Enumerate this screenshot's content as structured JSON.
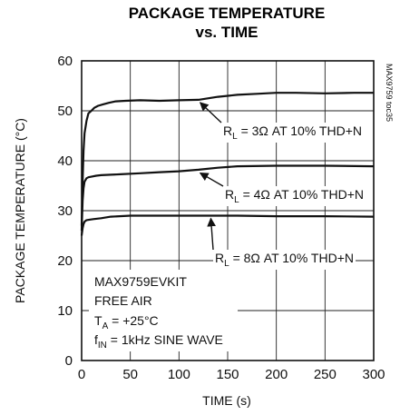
{
  "chart_data": {
    "type": "line",
    "title_line1": "PACKAGE TEMPERATURE",
    "title_line2": "vs. TIME",
    "xlabel": "TIME (s)",
    "ylabel": "PACKAGE TEMPERATURE (°C)",
    "xlim": [
      0,
      300
    ],
    "ylim": [
      0,
      60
    ],
    "xticks": [
      "0",
      "50",
      "100",
      "150",
      "200",
      "250",
      "300"
    ],
    "yticks": [
      "0",
      "10",
      "20",
      "30",
      "40",
      "50",
      "60"
    ],
    "grid": true,
    "side_tag": "MAX9759 toc35",
    "series": [
      {
        "name": "RL = 3Ω AT 10% THD+N",
        "x": [
          0,
          1,
          2,
          3,
          5,
          7,
          10,
          13,
          17,
          22,
          28,
          35,
          45,
          60,
          80,
          100,
          120,
          140,
          160,
          180,
          200,
          220,
          250,
          280,
          300
        ],
        "y": [
          27,
          36,
          42,
          45.5,
          48,
          49.5,
          50,
          50.6,
          51,
          51.3,
          51.6,
          51.9,
          52,
          52.1,
          52,
          52.1,
          52.2,
          52.8,
          53.2,
          53.4,
          53.6,
          53.6,
          53.5,
          53.6,
          53.6
        ]
      },
      {
        "name": "RL = 4Ω AT 10% THD+N",
        "x": [
          0,
          1,
          2,
          3,
          5,
          7,
          10,
          15,
          20,
          30,
          40,
          60,
          80,
          100,
          120,
          140,
          160,
          200,
          250,
          300
        ],
        "y": [
          26,
          32,
          34.5,
          35.8,
          36.5,
          36.7,
          36.8,
          37,
          37.1,
          37.2,
          37.3,
          37.5,
          37.7,
          37.9,
          38.2,
          38.6,
          38.9,
          39,
          39,
          38.9
        ]
      },
      {
        "name": "RL = 8Ω AT 10% THD+N",
        "x": [
          0,
          1,
          2,
          3,
          5,
          8,
          12,
          20,
          30,
          50,
          80,
          120,
          160,
          200,
          250,
          300
        ],
        "y": [
          25,
          26.5,
          27.3,
          27.8,
          28.1,
          28.2,
          28.3,
          28.5,
          28.8,
          29,
          29,
          29,
          29,
          28.9,
          28.9,
          28.8
        ]
      }
    ],
    "annotations": [
      {
        "label_pre": "R",
        "label_sub": "L",
        "label_post": " = 3Ω AT 10% THD+N",
        "point_x": 118,
        "point_y": 52.2
      },
      {
        "label_pre": "R",
        "label_sub": "L",
        "label_post": " = 4Ω AT 10% THD+N",
        "point_x": 118,
        "point_y": 38.1
      },
      {
        "label_pre": "R",
        "label_sub": "L",
        "label_post": " = 8Ω AT 10% THD+N",
        "point_x": 129,
        "point_y": 29.0
      }
    ],
    "note_lines": [
      {
        "pre": "MAX9759EVKIT",
        "sub": "",
        "post": ""
      },
      {
        "pre": "FREE AIR",
        "sub": "",
        "post": ""
      },
      {
        "pre": "T",
        "sub": "A",
        "post": " = +25°C"
      },
      {
        "pre": "f",
        "sub": "IN",
        "post": " = 1kHz SINE WAVE"
      }
    ]
  }
}
